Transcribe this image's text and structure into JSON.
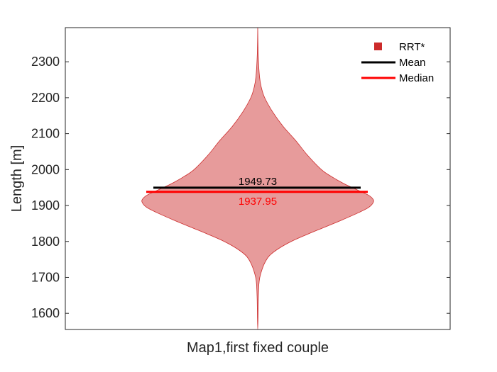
{
  "chart_data": {
    "type": "violin",
    "title": "",
    "xlabel": "",
    "ylabel": "Length [m]",
    "categories": [
      "Map1,first fixed couple"
    ],
    "ylim": [
      1555,
      2395
    ],
    "yticks": [
      1600,
      1700,
      1800,
      1900,
      2000,
      2100,
      2200,
      2300
    ],
    "grid": false,
    "legend_position": "top-right",
    "series": [
      {
        "name": "RRT*",
        "color": "#cc2b2b",
        "fill": "#e79b9b",
        "mean": 1949.73,
        "median": 1937.95,
        "mean_label": "1949.73",
        "median_label": "1937.95",
        "density_profile": [
          [
            2395,
            0.0
          ],
          [
            2320,
            0.004
          ],
          [
            2260,
            0.015
          ],
          [
            2230,
            0.03
          ],
          [
            2200,
            0.06
          ],
          [
            2160,
            0.13
          ],
          [
            2120,
            0.22
          ],
          [
            2080,
            0.33
          ],
          [
            2040,
            0.43
          ],
          [
            2000,
            0.55
          ],
          [
            1980,
            0.64
          ],
          [
            1960,
            0.75
          ],
          [
            1945,
            0.85
          ],
          [
            1930,
            0.95
          ],
          [
            1920,
            0.99
          ],
          [
            1910,
            1.0
          ],
          [
            1895,
            0.96
          ],
          [
            1880,
            0.87
          ],
          [
            1860,
            0.73
          ],
          [
            1840,
            0.58
          ],
          [
            1820,
            0.43
          ],
          [
            1800,
            0.29
          ],
          [
            1780,
            0.18
          ],
          [
            1760,
            0.1
          ],
          [
            1740,
            0.06
          ],
          [
            1720,
            0.035
          ],
          [
            1700,
            0.018
          ],
          [
            1680,
            0.01
          ],
          [
            1640,
            0.005
          ],
          [
            1600,
            0.003
          ],
          [
            1555,
            0.0
          ]
        ]
      }
    ],
    "legend": [
      {
        "label": "RRT*",
        "kind": "square",
        "color": "#cc2b2b"
      },
      {
        "label": "Mean",
        "kind": "line",
        "color": "#000000"
      },
      {
        "label": "Median",
        "kind": "line",
        "color": "#ff0000"
      }
    ],
    "mean_line_color": "#000000",
    "median_line_color": "#ff0000",
    "median_text_color": "#ff0000"
  }
}
